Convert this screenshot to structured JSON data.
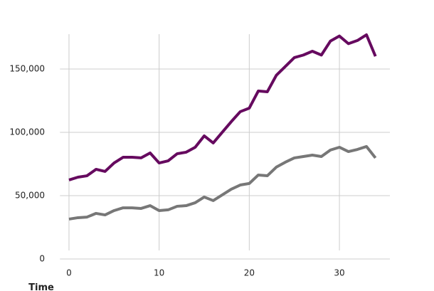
{
  "chart_data": {
    "type": "line",
    "x_label": "Time",
    "x": [
      0,
      1,
      2,
      3,
      4,
      5,
      6,
      7,
      8,
      9,
      10,
      11,
      12,
      13,
      14,
      15,
      16,
      17,
      18,
      19,
      20,
      21,
      22,
      23,
      24,
      25,
      26,
      27,
      28,
      29,
      30,
      31,
      32,
      33,
      34
    ],
    "series": [
      {
        "color": "#660a5f",
        "values": [
          62400,
          64600,
          65700,
          70800,
          69100,
          75800,
          80300,
          80300,
          79800,
          83700,
          75800,
          77500,
          83100,
          84300,
          88200,
          97200,
          91600,
          100000,
          108400,
          116300,
          119100,
          132600,
          132000,
          145000,
          152000,
          159000,
          161000,
          164000,
          161000,
          172000,
          176000,
          170000,
          172500,
          177000,
          160000
        ]
      },
      {
        "color": "#777777",
        "values": [
          31500,
          32600,
          33100,
          36000,
          34800,
          38200,
          40400,
          40400,
          39900,
          42100,
          38200,
          38800,
          41600,
          42100,
          44400,
          48900,
          46100,
          50600,
          55100,
          58400,
          59600,
          66300,
          65700,
          72500,
          76400,
          79800,
          80900,
          82000,
          80900,
          86000,
          88200,
          84800,
          86500,
          88800,
          79800
        ]
      }
    ],
    "xlim": [
      -1,
      35.6
    ],
    "xticks": [
      0,
      10,
      20,
      30
    ],
    "ylim": [
      0,
      177500
    ],
    "yticks": [
      0,
      {
        "value": 50000,
        "label": "50,000"
      },
      {
        "value": 100000,
        "label": "100,000"
      },
      {
        "value": 150000,
        "label": "150,000"
      }
    ],
    "grid": true
  }
}
